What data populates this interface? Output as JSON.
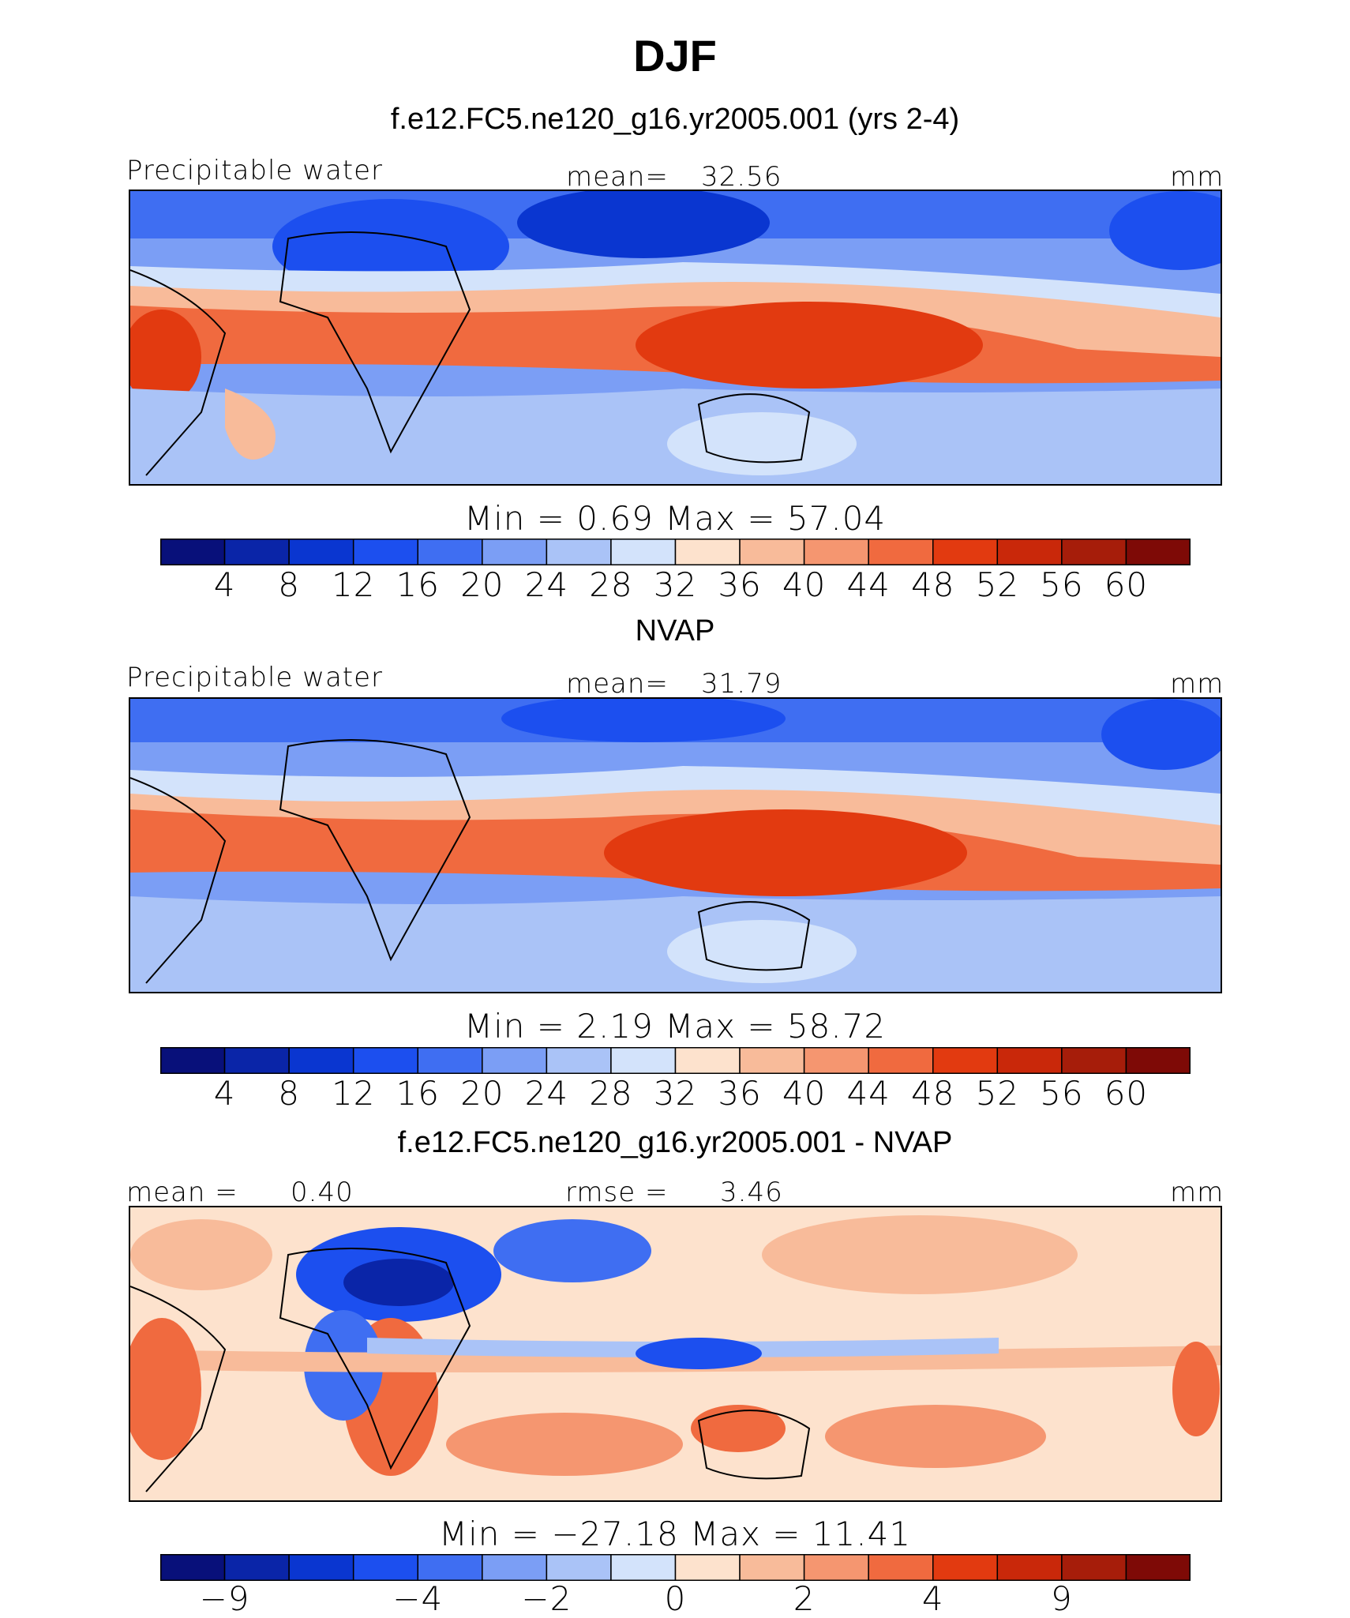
{
  "page_title": "DJF",
  "chart_data": [
    {
      "type": "heatmap",
      "title": "f.e12.FC5.ne120_g16.yr2005.001 (yrs 2-4)",
      "field_label": "Precipitable water",
      "stat_label": "mean=",
      "stat_value": "32.56",
      "units": "mm",
      "min_label": "Min",
      "min_value": "0.69",
      "max_label": "Max",
      "max_value": "57.04",
      "colorbar_ticks": [
        "4",
        "8",
        "12",
        "16",
        "20",
        "24",
        "28",
        "32",
        "36",
        "40",
        "44",
        "48",
        "52",
        "56",
        "60"
      ],
      "colorbar_colors": [
        "#08107a",
        "#0a25a8",
        "#0a36d0",
        "#1c4fef",
        "#3f6ef2",
        "#7b9ef5",
        "#aac3f7",
        "#d3e3fb",
        "#fde2cd",
        "#f8bb9a",
        "#f59670",
        "#f06a3f",
        "#e23a10",
        "#c9280a",
        "#a61d0a",
        "#7e0a06"
      ]
    },
    {
      "type": "heatmap",
      "title": "NVAP",
      "field_label": "Precipitable water",
      "stat_label": "mean=",
      "stat_value": "31.79",
      "units": "mm",
      "min_label": "Min",
      "min_value": "2.19",
      "max_label": "Max",
      "max_value": "58.72",
      "colorbar_ticks": [
        "4",
        "8",
        "12",
        "16",
        "20",
        "24",
        "28",
        "32",
        "36",
        "40",
        "44",
        "48",
        "52",
        "56",
        "60"
      ],
      "colorbar_colors": [
        "#08107a",
        "#0a25a8",
        "#0a36d0",
        "#1c4fef",
        "#3f6ef2",
        "#7b9ef5",
        "#aac3f7",
        "#d3e3fb",
        "#fde2cd",
        "#f8bb9a",
        "#f59670",
        "#f06a3f",
        "#e23a10",
        "#c9280a",
        "#a61d0a",
        "#7e0a06"
      ]
    },
    {
      "type": "heatmap",
      "title": "f.e12.FC5.ne120_g16.yr2005.001 - NVAP",
      "field_label": "mean =",
      "field_value": "0.40",
      "stat_label": "rmse =",
      "stat_value": "3.46",
      "units": "mm",
      "min_label": "Min",
      "min_value": "−27.18",
      "max_label": "Max",
      "max_value": "11.41",
      "colorbar_ticks": [
        "−9",
        "−4",
        "−2",
        "0",
        "2",
        "4",
        "9"
      ],
      "colorbar_colors": [
        "#08107a",
        "#0a25a8",
        "#0a36d0",
        "#1c4fef",
        "#3f6ef2",
        "#7b9ef5",
        "#aac3f7",
        "#d3e3fb",
        "#fde2cd",
        "#f8bb9a",
        "#f59670",
        "#f06a3f",
        "#e23a10",
        "#c9280a",
        "#a61d0a",
        "#7e0a06"
      ]
    }
  ]
}
